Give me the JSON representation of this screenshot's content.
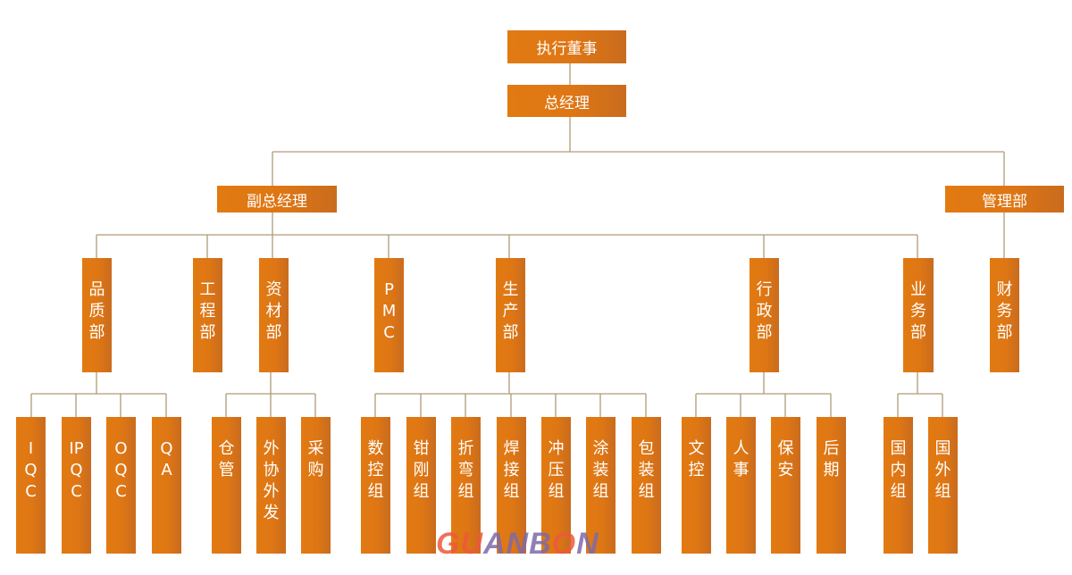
{
  "colors": {
    "box": "#e07814",
    "line": "#b09a78",
    "text": "#ffffff"
  },
  "top": {
    "ceo": "执行董事",
    "gm": "总经理",
    "deputy": "副总经理",
    "mgmt": "管理部"
  },
  "depts": {
    "quality": "品质部",
    "engineering": "工程部",
    "materials": "资材部",
    "pmc": "PMC",
    "production": "生产部",
    "admin": "行政部",
    "sales": "业务部",
    "finance": "财务部"
  },
  "quality_units": [
    "IQC",
    "IPQC",
    "OQC",
    "QA"
  ],
  "materials_units": [
    "仓管",
    "外协外发",
    "采购"
  ],
  "production_units": [
    "数控组",
    "钳刚组",
    "折弯组",
    "焊接组",
    "冲压组",
    "涂装组",
    "包装组"
  ],
  "admin_units": [
    "文控",
    "人事",
    "保安",
    "后期"
  ],
  "sales_units": [
    "国内组",
    "国外组"
  ],
  "logo": {
    "part1": "GU",
    "part2": "ANB",
    "part3": "O",
    "part4": "N"
  }
}
